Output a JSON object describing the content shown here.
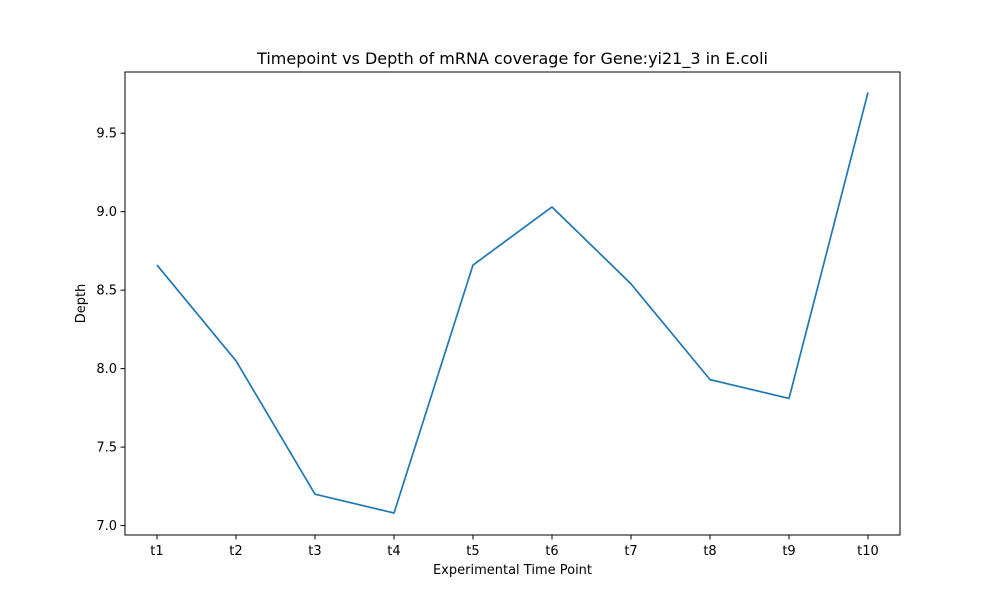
{
  "chart_data": {
    "type": "line",
    "title": "Timepoint vs Depth of mRNA coverage for Gene:yi21_3 in E.coli",
    "xlabel": "Experimental Time Point",
    "ylabel": "Depth",
    "categories": [
      "t1",
      "t2",
      "t3",
      "t4",
      "t5",
      "t6",
      "t7",
      "t8",
      "t9",
      "t10"
    ],
    "series": [
      {
        "values": [
          8.66,
          8.05,
          7.2,
          7.08,
          8.66,
          9.03,
          8.54,
          7.93,
          7.81,
          9.76
        ],
        "color": "#1f77b4"
      }
    ],
    "ylim": [
      6.94,
      9.89
    ],
    "yticks": [
      7.0,
      7.5,
      8.0,
      8.5,
      9.0,
      9.5
    ],
    "ytick_labels": [
      "7.0",
      "7.5",
      "8.0",
      "8.5",
      "9.0",
      "9.5"
    ],
    "grid": false,
    "legend": false
  }
}
